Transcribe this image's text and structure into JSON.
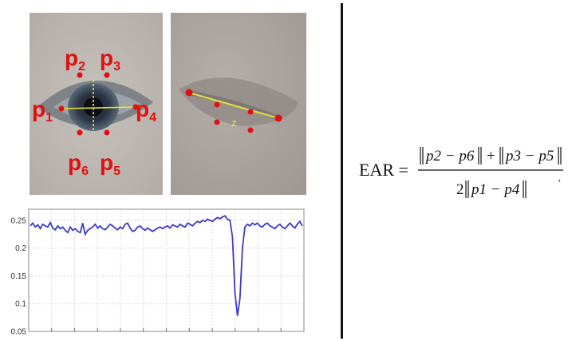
{
  "eye_open": {
    "labels": {
      "p1_main": "p",
      "p1_sub": "1",
      "p2_main": "p",
      "p2_sub": "2",
      "p3_main": "p",
      "p3_sub": "3",
      "p4_main": "p",
      "p4_sub": "4",
      "p5_main": "p",
      "p5_sub": "5",
      "p6_main": "p",
      "p6_sub": "6"
    }
  },
  "eye_closed": {
    "mark": "z"
  },
  "formula": {
    "lhs": "EAR =",
    "num_a": "p2 − p6",
    "plus": "+",
    "num_b": "p3 − p5",
    "den_coef": "2",
    "den_term": "p1 − p4",
    "trail": ","
  },
  "chart_data": {
    "type": "line",
    "ylim": [
      0.05,
      0.27
    ],
    "yticks": [
      "0.25",
      "0.2",
      "0.15",
      "0.1",
      "0.05"
    ],
    "ytick_values": [
      0.25,
      0.2,
      0.15,
      0.1,
      0.05
    ],
    "grid": true,
    "color": "#3a3acb",
    "series": [
      {
        "values": [
          0.24,
          0.245,
          0.238,
          0.242,
          0.235,
          0.243,
          0.24,
          0.238,
          0.246,
          0.236,
          0.233,
          0.24,
          0.235,
          0.238,
          0.232,
          0.228,
          0.238,
          0.232,
          0.235,
          0.23,
          0.228,
          0.245,
          0.225,
          0.232,
          0.235,
          0.238,
          0.243,
          0.236,
          0.24,
          0.235,
          0.233,
          0.238,
          0.243,
          0.24,
          0.236,
          0.233,
          0.238,
          0.235,
          0.243,
          0.245,
          0.236,
          0.23,
          0.232,
          0.238,
          0.24,
          0.235,
          0.232,
          0.236,
          0.233,
          0.23,
          0.233,
          0.236,
          0.238,
          0.235,
          0.238,
          0.24,
          0.236,
          0.242,
          0.24,
          0.238,
          0.243,
          0.24,
          0.238,
          0.245,
          0.243,
          0.24,
          0.245,
          0.248,
          0.246,
          0.25,
          0.248,
          0.252,
          0.25,
          0.248,
          0.252,
          0.255,
          0.253,
          0.256,
          0.258,
          0.252,
          0.25,
          0.22,
          0.12,
          0.078,
          0.11,
          0.2,
          0.238,
          0.243,
          0.24,
          0.245,
          0.242,
          0.245,
          0.24,
          0.238,
          0.243,
          0.245,
          0.24,
          0.238,
          0.235,
          0.24,
          0.243,
          0.238,
          0.235,
          0.24,
          0.245,
          0.24,
          0.236,
          0.243,
          0.248,
          0.24
        ]
      }
    ]
  }
}
